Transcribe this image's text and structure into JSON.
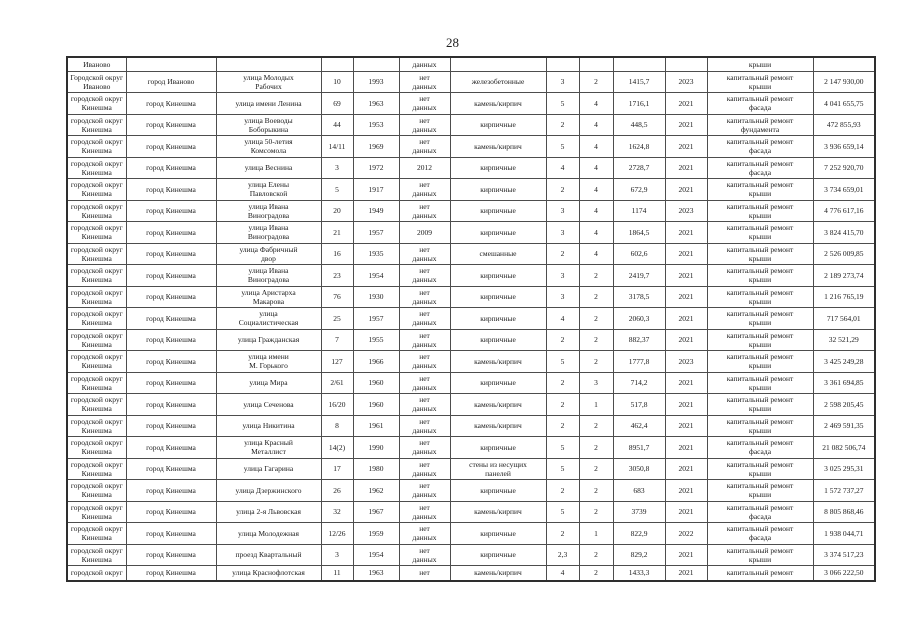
{
  "page_number": "28",
  "table": {
    "carryover_row": [
      "Иваново",
      "",
      "",
      "",
      "",
      "данных",
      "",
      "",
      "",
      "",
      "",
      "крыши",
      ""
    ],
    "rows": [
      [
        "Городской округ\nИваново",
        "город Иваново",
        "улица Молодых\nРабочих",
        "10",
        "1993",
        "нет\nданных",
        "железобетонные",
        "3",
        "2",
        "1415,7",
        "2023",
        "капитальный ремонт\nкрыши",
        "2 147 930,00"
      ],
      [
        "городской округ\nКинешма",
        "город Кинешма",
        "улица имени Ленина",
        "69",
        "1963",
        "нет\nданных",
        "камень/кирпич",
        "5",
        "4",
        "1716,1",
        "2021",
        "капитальный ремонт\nфасада",
        "4 041 655,75"
      ],
      [
        "городской округ\nКинешма",
        "город Кинешма",
        "улица Воеводы\nБоборыкина",
        "44",
        "1953",
        "нет\nданных",
        "кирпичные",
        "2",
        "4",
        "448,5",
        "2021",
        "капитальный ремонт\nфундамента",
        "472 855,93"
      ],
      [
        "городской округ\nКинешма",
        "город Кинешма",
        "улица 50-летия\nКомсомола",
        "14/11",
        "1969",
        "нет\nданных",
        "камень/кирпич",
        "5",
        "4",
        "1624,8",
        "2021",
        "капитальный ремонт\nфасада",
        "3 936 659,14"
      ],
      [
        "городской округ\nКинешма",
        "город Кинешма",
        "улица Веснина",
        "3",
        "1972",
        "2012",
        "кирпичные",
        "4",
        "4",
        "2728,7",
        "2021",
        "капитальный ремонт\nфасада",
        "7 252 920,70"
      ],
      [
        "городской округ\nКинешма",
        "город Кинешма",
        "улица Елены\nПавловской",
        "5",
        "1917",
        "нет\nданных",
        "кирпичные",
        "2",
        "4",
        "672,9",
        "2021",
        "капитальный ремонт\nкрыши",
        "3 734 659,01"
      ],
      [
        "городской округ\nКинешма",
        "город Кинешма",
        "улица Ивана\nВиноградова",
        "20",
        "1949",
        "нет\nданных",
        "кирпичные",
        "3",
        "4",
        "1174",
        "2023",
        "капитальный ремонт\nкрыши",
        "4 776 617,16"
      ],
      [
        "городской округ\nКинешма",
        "город Кинешма",
        "улица Ивана\nВиноградова",
        "21",
        "1957",
        "2009",
        "кирпичные",
        "3",
        "4",
        "1864,5",
        "2021",
        "капитальный ремонт\nкрыши",
        "3 824 415,70"
      ],
      [
        "городской округ\nКинешма",
        "город Кинешма",
        "улица Фабричный\nдвор",
        "16",
        "1935",
        "нет\nданных",
        "смешанные",
        "2",
        "4",
        "602,6",
        "2021",
        "капитальный ремонт\nкрыши",
        "2 526 009,85"
      ],
      [
        "городской округ\nКинешма",
        "город Кинешма",
        "улица Ивана\nВиноградова",
        "23",
        "1954",
        "нет\nданных",
        "кирпичные",
        "3",
        "2",
        "2419,7",
        "2021",
        "капитальный ремонт\nкрыши",
        "2 189 273,74"
      ],
      [
        "городской округ\nКинешма",
        "город Кинешма",
        "улица Аристарха\nМакарова",
        "76",
        "1930",
        "нет\nданных",
        "кирпичные",
        "3",
        "2",
        "3178,5",
        "2021",
        "капитальный ремонт\nкрыши",
        "1 216 765,19"
      ],
      [
        "городской округ\nКинешма",
        "город Кинешма",
        "улица\nСоциалистическая",
        "25",
        "1957",
        "нет\nданных",
        "кирпичные",
        "4",
        "2",
        "2060,3",
        "2021",
        "капитальный ремонт\nкрыши",
        "717 564,01"
      ],
      [
        "городской округ\nКинешма",
        "город Кинешма",
        "улица Гражданская",
        "7",
        "1955",
        "нет\nданных",
        "кирпичные",
        "2",
        "2",
        "882,37",
        "2021",
        "капитальный ремонт\nкрыши",
        "32 521,29"
      ],
      [
        "городской округ\nКинешма",
        "город Кинешма",
        "улица имени\nМ. Горького",
        "127",
        "1966",
        "нет\nданных",
        "камень/кирпич",
        "5",
        "2",
        "1777,8",
        "2023",
        "капитальный ремонт\nкрыши",
        "3 425 249,28"
      ],
      [
        "городской округ\nКинешма",
        "город Кинешма",
        "улица Мира",
        "2/61",
        "1960",
        "нет\nданных",
        "кирпичные",
        "2",
        "3",
        "714,2",
        "2021",
        "капитальный ремонт\nкрыши",
        "3 361 694,85"
      ],
      [
        "городской округ\nКинешма",
        "город Кинешма",
        "улица Сеченова",
        "16/20",
        "1960",
        "нет\nданных",
        "камень/кирпич",
        "2",
        "1",
        "517,8",
        "2021",
        "капитальный ремонт\nкрыши",
        "2 598 205,45"
      ],
      [
        "городской округ\nКинешма",
        "город Кинешма",
        "улица Никитина",
        "8",
        "1961",
        "нет\nданных",
        "камень/кирпич",
        "2",
        "2",
        "462,4",
        "2021",
        "капитальный ремонт\nкрыши",
        "2 469 591,35"
      ],
      [
        "городской округ\nКинешма",
        "город Кинешма",
        "улица Красный\nМеталлист",
        "14(2)",
        "1990",
        "нет\nданных",
        "кирпичные",
        "5",
        "2",
        "8951,7",
        "2021",
        "капитальный ремонт\nфасада",
        "21 082 506,74"
      ],
      [
        "городской округ\nКинешма",
        "город Кинешма",
        "улица Гагарина",
        "17",
        "1980",
        "нет\nданных",
        "стены из несущих\nпанелей",
        "5",
        "2",
        "3050,8",
        "2021",
        "капитальный ремонт\nкрыши",
        "3 025 295,31"
      ],
      [
        "городской округ\nКинешма",
        "город Кинешма",
        "улица Дзержинского",
        "26",
        "1962",
        "нет\nданных",
        "кирпичные",
        "2",
        "2",
        "683",
        "2021",
        "капитальный ремонт\nкрыши",
        "1 572 737,27"
      ],
      [
        "городской округ\nКинешма",
        "город Кинешма",
        "улица 2-я Львовская",
        "32",
        "1967",
        "нет\nданных",
        "камень/кирпич",
        "5",
        "2",
        "3739",
        "2021",
        "капитальный ремонт\nфасада",
        "8 805 868,46"
      ],
      [
        "городской округ\nКинешма",
        "город Кинешма",
        "улица Молодежная",
        "12/26",
        "1959",
        "нет\nданных",
        "кирпичные",
        "2",
        "1",
        "822,9",
        "2022",
        "капитальный ремонт\nфасада",
        "1 938 044,71"
      ],
      [
        "городской округ\nКинешма",
        "город Кинешма",
        "проезд Квартальный",
        "3",
        "1954",
        "нет\nданных",
        "кирпичные",
        "2,3",
        "2",
        "829,2",
        "2021",
        "капитальный ремонт\nкрыши",
        "3 374 517,23"
      ],
      [
        "городской округ",
        "город Кинешма",
        "улица Краснофлотская",
        "11",
        "1963",
        "нет",
        "камень/кирпич",
        "4",
        "2",
        "1433,3",
        "2021",
        "капитальный ремонт",
        "3 066 222,50"
      ]
    ]
  }
}
